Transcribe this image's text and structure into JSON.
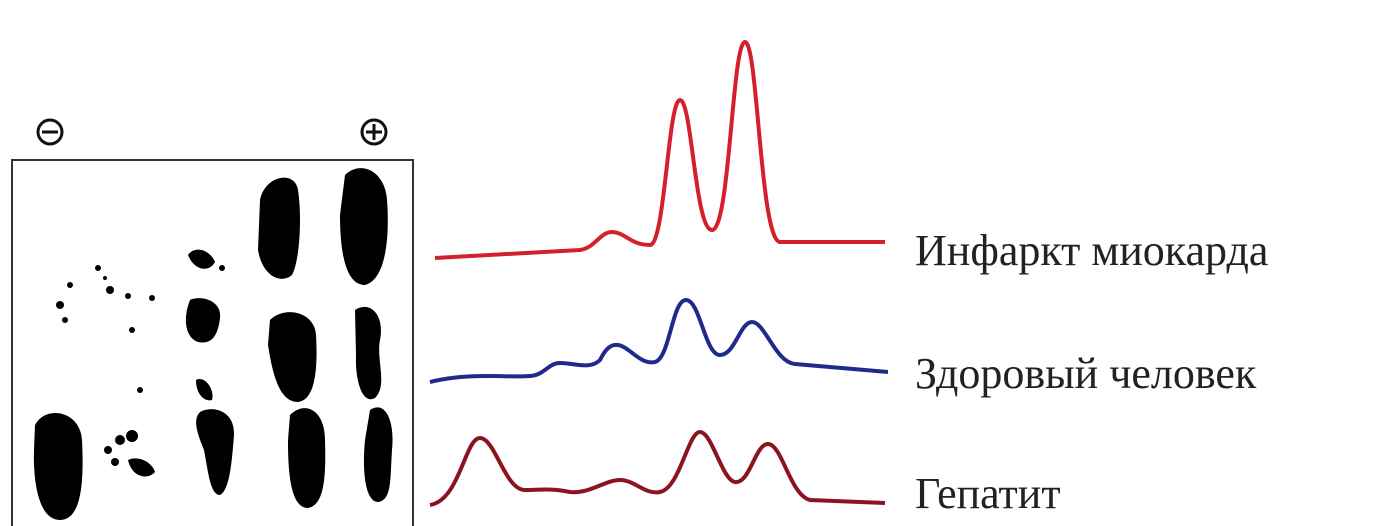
{
  "labels": [
    "Инфаркт миокарда",
    "Здоровый человек",
    "Гепатит"
  ]
}
